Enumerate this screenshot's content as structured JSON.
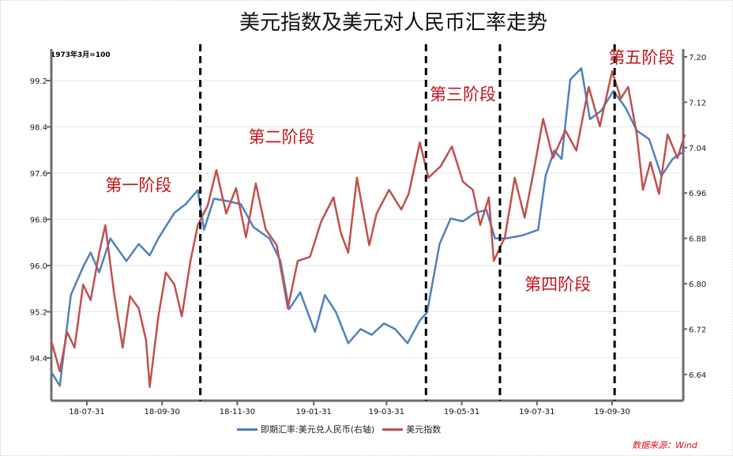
{
  "chart_data": {
    "type": "line",
    "title": "美元指数及美元对人民币汇率走势",
    "base_note": "1973年3月=100",
    "source": "数据来源：Wind",
    "x_ticks": [
      "18-07-31",
      "18-09-30",
      "18-11-30",
      "19-01-31",
      "19-03-31",
      "19-05-31",
      "19-07-31",
      "19-09-30"
    ],
    "x_tick_dates": [
      "2018-07-31",
      "2018-09-30",
      "2018-11-30",
      "2019-01-31",
      "2019-03-31",
      "2019-05-31",
      "2019-07-31",
      "2019-09-30"
    ],
    "xlim": [
      "2018-07-02",
      "2019-11-28"
    ],
    "left_axis": {
      "ylim": [
        93.6,
        99.9
      ],
      "ticks": [
        "94.4",
        "95.2",
        "96.0",
        "96.8",
        "97.6",
        "98.4",
        "99.2"
      ]
    },
    "right_axis": {
      "ylim": [
        6.595,
        7.205
      ],
      "ticks": [
        "6.64",
        "6.72",
        "6.80",
        "6.88",
        "6.96",
        "7.04",
        "7.12",
        "7.20"
      ]
    },
    "grid": "horizontal",
    "legend_placement": "bottom",
    "phase_dividers": [
      "2018-10-31",
      "2019-05-02",
      "2019-07-01",
      "2019-10-02"
    ],
    "phase_labels": [
      {
        "text": "第一阶段",
        "date": "2018-08-15",
        "value_right": 6.975
      },
      {
        "text": "第二阶段",
        "date": "2018-12-09",
        "value_right": 7.06
      },
      {
        "text": "第三阶段",
        "date": "2019-05-05",
        "value_right": 7.135
      },
      {
        "text": "第四阶段",
        "date": "2019-07-21",
        "value_right": 6.8
      },
      {
        "text": "第五阶段",
        "date": "2019-09-27",
        "value_right": 7.2
      }
    ],
    "series": [
      {
        "name": "即期汇率:美元兑人民币(右轴)",
        "axis": "right",
        "color": "#4f81bd",
        "points": [
          [
            "2018-07-02",
            6.645
          ],
          [
            "2018-07-09",
            6.62
          ],
          [
            "2018-07-18",
            6.78
          ],
          [
            "2018-07-28",
            6.83
          ],
          [
            "2018-08-03",
            6.855
          ],
          [
            "2018-08-10",
            6.82
          ],
          [
            "2018-08-19",
            6.88
          ],
          [
            "2018-09-01",
            6.84
          ],
          [
            "2018-09-11",
            6.87
          ],
          [
            "2018-09-20",
            6.85
          ],
          [
            "2018-09-27",
            6.88
          ],
          [
            "2018-10-10",
            6.925
          ],
          [
            "2018-10-19",
            6.94
          ],
          [
            "2018-10-29",
            6.965
          ],
          [
            "2018-11-03",
            6.895
          ],
          [
            "2018-11-11",
            6.95
          ],
          [
            "2018-11-24",
            6.945
          ],
          [
            "2018-12-03",
            6.94
          ],
          [
            "2018-12-13",
            6.9
          ],
          [
            "2018-12-26",
            6.88
          ],
          [
            "2019-01-04",
            6.84
          ],
          [
            "2019-01-11",
            6.755
          ],
          [
            "2019-01-20",
            6.785
          ],
          [
            "2019-02-01",
            6.715
          ],
          [
            "2019-02-09",
            6.78
          ],
          [
            "2019-02-18",
            6.75
          ],
          [
            "2019-02-28",
            6.695
          ],
          [
            "2019-03-10",
            6.72
          ],
          [
            "2019-03-19",
            6.71
          ],
          [
            "2019-03-29",
            6.73
          ],
          [
            "2019-04-07",
            6.72
          ],
          [
            "2019-04-17",
            6.695
          ],
          [
            "2019-04-27",
            6.735
          ],
          [
            "2019-05-03",
            6.75
          ],
          [
            "2019-05-13",
            6.87
          ],
          [
            "2019-05-22",
            6.915
          ],
          [
            "2019-06-01",
            6.91
          ],
          [
            "2019-06-11",
            6.925
          ],
          [
            "2019-06-20",
            6.93
          ],
          [
            "2019-06-27",
            6.88
          ],
          [
            "2019-07-06",
            6.88
          ],
          [
            "2019-07-19",
            6.885
          ],
          [
            "2019-08-01",
            6.895
          ],
          [
            "2019-08-07",
            6.99
          ],
          [
            "2019-08-14",
            7.035
          ],
          [
            "2019-08-20",
            7.02
          ],
          [
            "2019-08-27",
            7.16
          ],
          [
            "2019-09-05",
            7.18
          ],
          [
            "2019-09-12",
            7.09
          ],
          [
            "2019-09-21",
            7.105
          ],
          [
            "2019-10-01",
            7.14
          ],
          [
            "2019-10-11",
            7.11
          ],
          [
            "2019-10-20",
            7.07
          ],
          [
            "2019-10-30",
            7.055
          ],
          [
            "2019-11-09",
            6.99
          ],
          [
            "2019-11-18",
            7.02
          ],
          [
            "2019-11-28",
            7.035
          ]
        ]
      },
      {
        "name": "美元指数",
        "axis": "left",
        "color": "#c0504d",
        "points": [
          [
            "2018-07-02",
            94.71
          ],
          [
            "2018-07-09",
            94.17
          ],
          [
            "2018-07-15",
            94.85
          ],
          [
            "2018-07-21",
            94.58
          ],
          [
            "2018-07-28",
            95.67
          ],
          [
            "2018-08-03",
            95.4
          ],
          [
            "2018-08-10",
            96.22
          ],
          [
            "2018-08-15",
            96.7
          ],
          [
            "2018-08-22",
            95.53
          ],
          [
            "2018-08-29",
            94.58
          ],
          [
            "2018-09-04",
            95.47
          ],
          [
            "2018-09-11",
            95.26
          ],
          [
            "2018-09-17",
            94.71
          ],
          [
            "2018-09-20",
            93.9
          ],
          [
            "2018-09-27",
            95.12
          ],
          [
            "2018-10-03",
            95.88
          ],
          [
            "2018-10-10",
            95.67
          ],
          [
            "2018-10-16",
            95.12
          ],
          [
            "2018-10-23",
            96.08
          ],
          [
            "2018-10-29",
            96.7
          ],
          [
            "2018-11-06",
            97.04
          ],
          [
            "2018-11-13",
            97.65
          ],
          [
            "2018-11-21",
            96.9
          ],
          [
            "2018-11-29",
            97.34
          ],
          [
            "2018-12-07",
            96.49
          ],
          [
            "2018-12-15",
            97.42
          ],
          [
            "2018-12-23",
            96.63
          ],
          [
            "2019-01-01",
            96.35
          ],
          [
            "2019-01-10",
            95.26
          ],
          [
            "2019-01-18",
            96.08
          ],
          [
            "2019-01-28",
            96.15
          ],
          [
            "2019-02-06",
            96.76
          ],
          [
            "2019-02-16",
            97.18
          ],
          [
            "2019-02-22",
            96.56
          ],
          [
            "2019-02-28",
            96.22
          ],
          [
            "2019-03-07",
            97.52
          ],
          [
            "2019-03-17",
            96.35
          ],
          [
            "2019-03-23",
            96.9
          ],
          [
            "2019-04-02",
            97.31
          ],
          [
            "2019-04-12",
            96.97
          ],
          [
            "2019-04-18",
            97.24
          ],
          [
            "2019-04-27",
            98.13
          ],
          [
            "2019-05-04",
            97.52
          ],
          [
            "2019-05-14",
            97.72
          ],
          [
            "2019-05-23",
            98.06
          ],
          [
            "2019-06-01",
            97.45
          ],
          [
            "2019-06-09",
            97.31
          ],
          [
            "2019-06-15",
            96.7
          ],
          [
            "2019-06-22",
            97.18
          ],
          [
            "2019-06-26",
            96.08
          ],
          [
            "2019-07-05",
            96.49
          ],
          [
            "2019-07-13",
            97.52
          ],
          [
            "2019-07-21",
            96.83
          ],
          [
            "2019-07-28",
            97.59
          ],
          [
            "2019-08-05",
            98.54
          ],
          [
            "2019-08-13",
            97.86
          ],
          [
            "2019-08-23",
            98.34
          ],
          [
            "2019-09-01",
            97.99
          ],
          [
            "2019-09-11",
            99.09
          ],
          [
            "2019-09-20",
            98.41
          ],
          [
            "2019-09-30",
            99.36
          ],
          [
            "2019-10-07",
            98.89
          ],
          [
            "2019-10-13",
            99.09
          ],
          [
            "2019-10-20",
            98.27
          ],
          [
            "2019-10-25",
            97.31
          ],
          [
            "2019-10-31",
            97.79
          ],
          [
            "2019-11-07",
            97.24
          ],
          [
            "2019-11-14",
            98.27
          ],
          [
            "2019-11-22",
            97.86
          ],
          [
            "2019-11-28",
            98.27
          ]
        ]
      }
    ]
  }
}
